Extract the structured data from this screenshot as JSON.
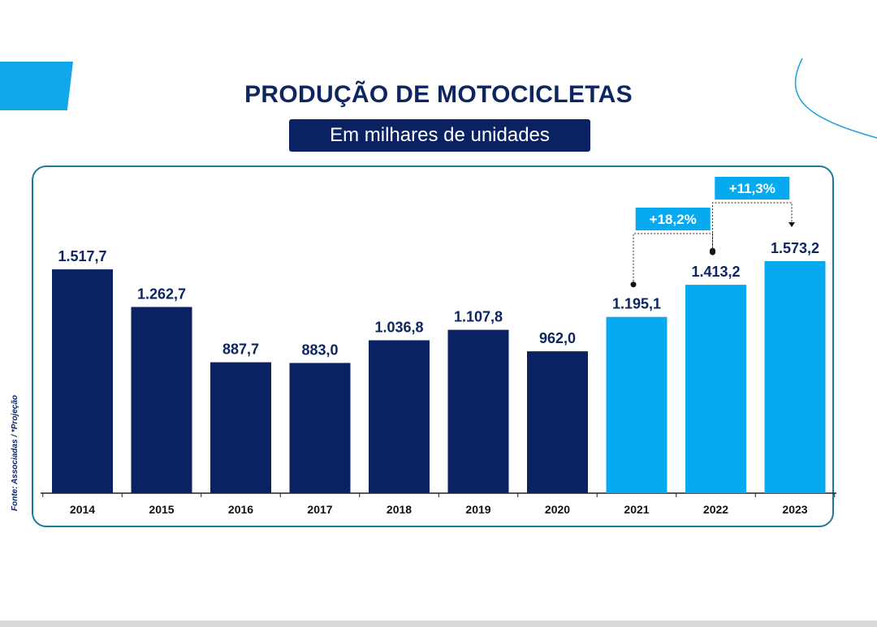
{
  "title": "PRODUÇÃO DE MOTOCICLETAS",
  "subtitle": "Em milhares de unidades",
  "source_note": "Fonte: Associadas   /   *Projeção",
  "colors": {
    "dark_bar": "#0b2262",
    "light_bar": "#07aaee",
    "badge": "#07aaee",
    "text": "#0d2560"
  },
  "chart_data": {
    "type": "bar",
    "categories": [
      "2014",
      "2015",
      "2016",
      "2017",
      "2018",
      "2019",
      "2020",
      "2021",
      "2022",
      "2023"
    ],
    "values": [
      1517.7,
      1262.7,
      887.7,
      883.0,
      1036.8,
      1107.8,
      962.0,
      1195.1,
      1413.2,
      1573.2
    ],
    "value_labels": [
      "1.517,7",
      "1.262,7",
      "887,7",
      "883,0",
      "1.036,8",
      "1.107,8",
      "962,0",
      "1.195,1",
      "1.413,2",
      "1.573,2"
    ],
    "highlighted_categories": [
      "2021",
      "2022",
      "2023"
    ],
    "ylim": [
      0,
      1573.2
    ],
    "annotations": [
      {
        "from": "2021",
        "to": "2022",
        "label": "+18,2%"
      },
      {
        "from": "2022",
        "to": "2023",
        "label": "+11,3%"
      }
    ],
    "grid": false
  }
}
